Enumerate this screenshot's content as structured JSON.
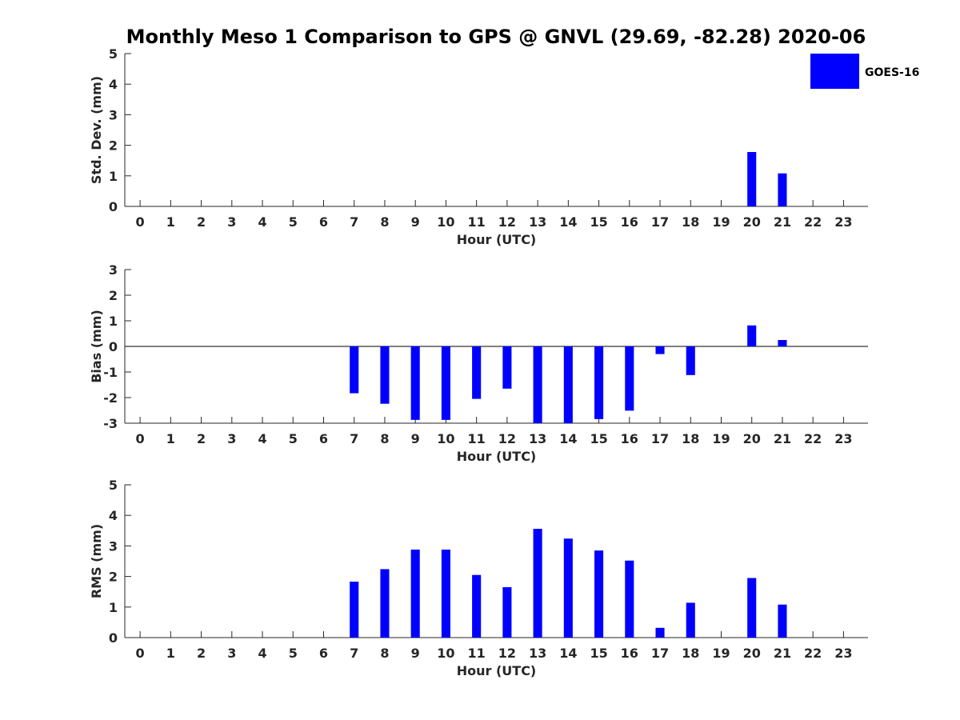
{
  "title": "Monthly Meso 1 Comparison to GPS @ GNVL (29.69, -82.28) 2020-06",
  "legend": {
    "label": "GOES-16",
    "color": "#0000ff"
  },
  "chart_data": [
    {
      "type": "bar",
      "xlabel": "Hour (UTC)",
      "ylabel": "Std. Dev. (mm)",
      "ylim": [
        0,
        5
      ],
      "yticks": [
        "0",
        "1",
        "2",
        "3",
        "4",
        "5"
      ],
      "categories": [
        "0",
        "1",
        "2",
        "3",
        "4",
        "5",
        "6",
        "7",
        "8",
        "9",
        "10",
        "11",
        "12",
        "13",
        "14",
        "15",
        "16",
        "17",
        "18",
        "19",
        "20",
        "21",
        "22",
        "23"
      ],
      "series": [
        {
          "name": "GOES-16",
          "values": [
            null,
            null,
            null,
            null,
            null,
            null,
            null,
            null,
            null,
            null,
            null,
            null,
            null,
            null,
            null,
            null,
            null,
            null,
            null,
            null,
            1.78,
            1.08,
            null,
            null
          ]
        }
      ]
    },
    {
      "type": "bar",
      "xlabel": "Hour (UTC)",
      "ylabel": "Bias (mm)",
      "ylim": [
        -3,
        3
      ],
      "yticks": [
        "-3",
        "-2",
        "-1",
        "0",
        "1",
        "2",
        "3"
      ],
      "zero_line": true,
      "categories": [
        "0",
        "1",
        "2",
        "3",
        "4",
        "5",
        "6",
        "7",
        "8",
        "9",
        "10",
        "11",
        "12",
        "13",
        "14",
        "15",
        "16",
        "17",
        "18",
        "19",
        "20",
        "21",
        "22",
        "23"
      ],
      "series": [
        {
          "name": "GOES-16",
          "values": [
            null,
            null,
            null,
            null,
            null,
            null,
            null,
            -1.83,
            -2.24,
            -2.87,
            -2.87,
            -2.05,
            -1.65,
            -3.0,
            -3.0,
            -2.84,
            -2.51,
            -0.3,
            -1.12,
            null,
            0.82,
            0.25,
            null,
            null
          ]
        }
      ]
    },
    {
      "type": "bar",
      "xlabel": "Hour (UTC)",
      "ylabel": "RMS (mm)",
      "ylim": [
        0,
        5
      ],
      "yticks": [
        "0",
        "1",
        "2",
        "3",
        "4",
        "5"
      ],
      "categories": [
        "0",
        "1",
        "2",
        "3",
        "4",
        "5",
        "6",
        "7",
        "8",
        "9",
        "10",
        "11",
        "12",
        "13",
        "14",
        "15",
        "16",
        "17",
        "18",
        "19",
        "20",
        "21",
        "22",
        "23"
      ],
      "series": [
        {
          "name": "GOES-16",
          "values": [
            null,
            null,
            null,
            null,
            null,
            null,
            null,
            1.83,
            2.24,
            2.88,
            2.88,
            2.05,
            1.65,
            3.56,
            3.24,
            2.85,
            2.52,
            0.32,
            1.14,
            null,
            1.95,
            1.08,
            null,
            null
          ]
        }
      ]
    }
  ]
}
